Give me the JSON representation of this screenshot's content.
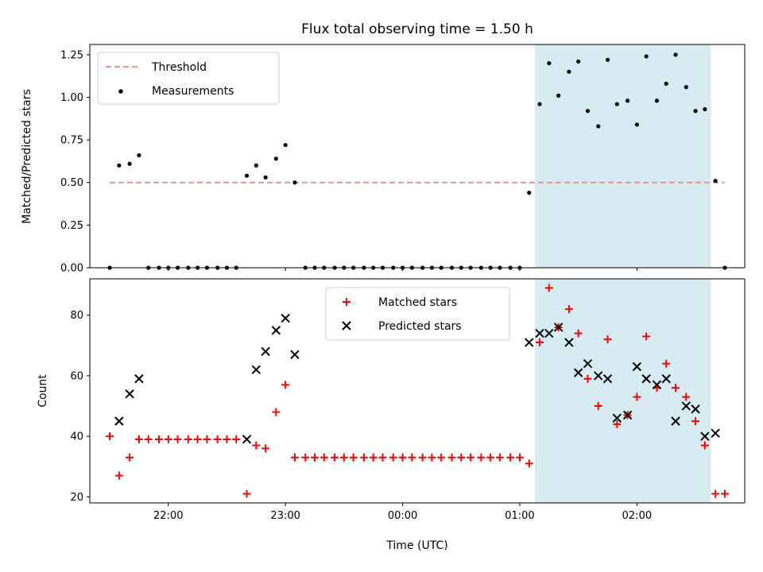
{
  "colors": {
    "shade": "#add8e6",
    "threshold": "#ff7f7f",
    "measurement": "#000000",
    "matched": "#ff0000",
    "predicted": "#000000"
  },
  "chart_data": [
    {
      "type": "scatter",
      "title": "Flux total observing time = 1.50 h",
      "xlabel": "",
      "ylabel": "Matched/Predicted stars",
      "x_range_utc_hours": [
        21.33,
        26.92
      ],
      "ylim": [
        0,
        1.31
      ],
      "yticks": [
        0.0,
        0.25,
        0.5,
        0.75,
        1.0,
        1.25
      ],
      "ytick_labels": [
        "0.00",
        "0.25",
        "0.50",
        "0.75",
        "1.00",
        "1.25"
      ],
      "legend_position": "upper left",
      "legend": [
        "Threshold",
        "Measurements"
      ],
      "shaded_interval_utc_hours": [
        25.13,
        26.63
      ],
      "threshold": {
        "name": "Threshold",
        "value": 0.5,
        "x_range_utc_hours": [
          21.5,
          26.75
        ],
        "style": "dashed"
      },
      "series": [
        {
          "name": "Measurements",
          "x_utc_hours": [
            21.5,
            21.58,
            21.67,
            21.75,
            21.83,
            21.92,
            22.0,
            22.08,
            22.17,
            22.25,
            22.33,
            22.42,
            22.5,
            22.58,
            22.67,
            22.75,
            22.83,
            22.92,
            23.0,
            23.08,
            23.17,
            23.25,
            23.33,
            23.42,
            23.5,
            23.58,
            23.67,
            23.75,
            23.83,
            23.92,
            24.0,
            24.08,
            24.17,
            24.25,
            24.33,
            24.42,
            24.5,
            24.58,
            24.67,
            24.75,
            24.83,
            24.92,
            25.0,
            25.08,
            25.17,
            25.25,
            25.33,
            25.42,
            25.5,
            25.58,
            25.67,
            25.75,
            25.83,
            25.92,
            26.0,
            26.08,
            26.17,
            26.25,
            26.33,
            26.42,
            26.5,
            26.58,
            26.67,
            26.75
          ],
          "y": [
            0,
            0.6,
            0.61,
            0.66,
            0,
            0,
            0,
            0,
            0,
            0,
            0,
            0,
            0,
            0,
            0.54,
            0.6,
            0.53,
            0.64,
            0.72,
            0.5,
            0,
            0,
            0,
            0,
            0,
            0,
            0,
            0,
            0,
            0,
            0,
            0,
            0,
            0,
            0,
            0,
            0,
            0,
            0,
            0,
            0,
            0,
            0,
            0.44,
            0.96,
            1.2,
            1.01,
            1.15,
            1.21,
            0.92,
            0.83,
            1.22,
            0.96,
            0.98,
            0.84,
            1.24,
            0.98,
            1.08,
            1.25,
            1.06,
            0.92,
            0.93,
            0.51,
            0
          ]
        }
      ]
    },
    {
      "type": "scatter",
      "xlabel": "Time (UTC)",
      "ylabel": "Count",
      "x_range_utc_hours": [
        21.33,
        26.92
      ],
      "ylim": [
        18,
        92
      ],
      "yticks": [
        20,
        40,
        60,
        80
      ],
      "ytick_labels": [
        "20",
        "40",
        "60",
        "80"
      ],
      "xticks_utc_hours": [
        22,
        23,
        24,
        25,
        26
      ],
      "xtick_labels": [
        "22:00",
        "23:00",
        "00:00",
        "01:00",
        "02:00"
      ],
      "legend_position": "upper center",
      "legend": [
        "Matched stars",
        "Predicted stars"
      ],
      "shaded_interval_utc_hours": [
        25.13,
        26.63
      ],
      "series": [
        {
          "name": "Matched stars",
          "marker": "+",
          "x_utc_hours": [
            21.5,
            21.58,
            21.67,
            21.75,
            21.83,
            21.92,
            22.0,
            22.08,
            22.17,
            22.25,
            22.33,
            22.42,
            22.5,
            22.58,
            22.67,
            22.75,
            22.83,
            22.92,
            23.0,
            23.08,
            23.17,
            23.25,
            23.33,
            23.42,
            23.5,
            23.58,
            23.67,
            23.75,
            23.83,
            23.92,
            24.0,
            24.08,
            24.17,
            24.25,
            24.33,
            24.42,
            24.5,
            24.58,
            24.67,
            24.75,
            24.83,
            24.92,
            25.0,
            25.08,
            25.17,
            25.25,
            25.33,
            25.42,
            25.5,
            25.58,
            25.67,
            25.75,
            25.83,
            25.92,
            26.0,
            26.08,
            26.17,
            26.25,
            26.33,
            26.42,
            26.5,
            26.58,
            26.67,
            26.75
          ],
          "y": [
            40,
            27,
            33,
            39,
            39,
            39,
            39,
            39,
            39,
            39,
            39,
            39,
            39,
            39,
            21,
            37,
            36,
            48,
            57,
            33,
            33,
            33,
            33,
            33,
            33,
            33,
            33,
            33,
            33,
            33,
            33,
            33,
            33,
            33,
            33,
            33,
            33,
            33,
            33,
            33,
            33,
            33,
            33,
            31,
            71,
            89,
            76,
            82,
            74,
            59,
            50,
            72,
            44,
            47,
            53,
            73,
            56,
            64,
            56,
            53,
            45,
            37,
            21,
            21
          ]
        },
        {
          "name": "Predicted stars",
          "marker": "x",
          "x_utc_hours": [
            21.58,
            21.67,
            21.75,
            22.67,
            22.75,
            22.83,
            22.92,
            23.0,
            23.08,
            25.08,
            25.17,
            25.25,
            25.33,
            25.42,
            25.5,
            25.58,
            25.67,
            25.75,
            25.83,
            25.92,
            26.0,
            26.08,
            26.17,
            26.25,
            26.33,
            26.42,
            26.5,
            26.58,
            26.67
          ],
          "y": [
            45,
            54,
            59,
            39,
            62,
            68,
            75,
            79,
            67,
            71,
            74,
            74,
            76,
            71,
            61,
            64,
            60,
            59,
            46,
            47,
            63,
            59,
            57,
            59,
            45,
            50,
            49,
            40,
            41
          ]
        }
      ]
    }
  ]
}
